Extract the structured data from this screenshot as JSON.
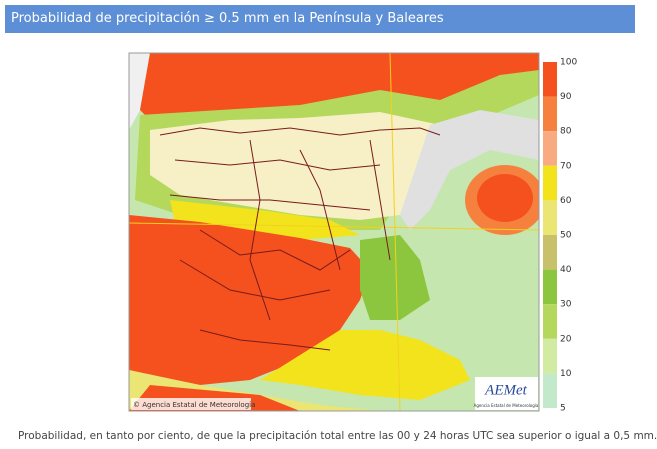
{
  "header": {
    "title": "Probabilidad de precipitación ≥ 0.5 mm en la Península y Baleares"
  },
  "map": {
    "copyright": "© Agencia Estatal de Meteorología",
    "logo": "AEMet",
    "logo_subtitle": "Agencia Estatal de Meteorología"
  },
  "legend": {
    "levels": [
      100,
      90,
      80,
      70,
      60,
      50,
      40,
      30,
      20,
      10,
      5
    ],
    "colors": [
      "#f4511e",
      "#f6813f",
      "#f8ab80",
      "#f2e31c",
      "#ebe574",
      "#c9c06c",
      "#8cc63f",
      "#b3d85c",
      "#d2eba2",
      "#c2e9c9"
    ]
  },
  "caption": "Probabilidad, en tanto por ciento, de que la precipitación total entre las 00 y 24 horas UTC sea superior o igual a 0,5 mm."
}
